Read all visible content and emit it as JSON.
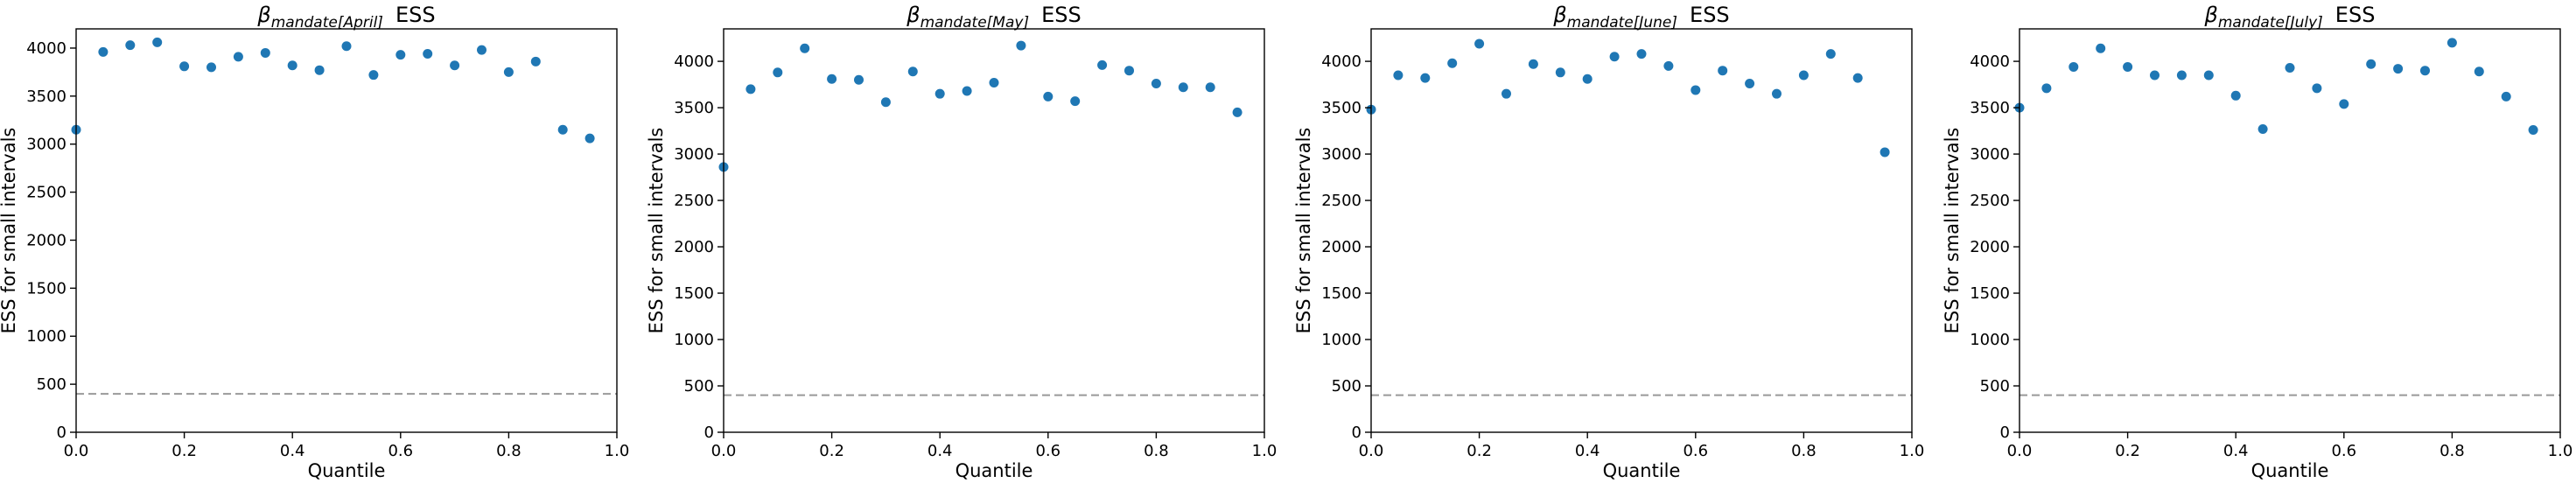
{
  "chart_data": [
    {
      "type": "scatter",
      "title_symbol": "β",
      "title_subscript": "mandate[April]",
      "title_suffix": "ESS",
      "xlabel": "Quantile",
      "ylabel": "ESS for small intervals",
      "xlim": [
        0.0,
        1.0
      ],
      "ylim": [
        0,
        4200
      ],
      "xticks": [
        "0.0",
        "0.2",
        "0.4",
        "0.6",
        "0.8",
        "1.0"
      ],
      "yticks": [
        "0",
        "500",
        "1000",
        "1500",
        "2000",
        "2500",
        "3000",
        "3500",
        "4000"
      ],
      "reference_line": 400,
      "color": "#1f77b4",
      "x": [
        0.0,
        0.05,
        0.1,
        0.15,
        0.2,
        0.25,
        0.3,
        0.35,
        0.4,
        0.45,
        0.5,
        0.55,
        0.6,
        0.65,
        0.7,
        0.75,
        0.8,
        0.85,
        0.9,
        0.95
      ],
      "y": [
        3150,
        3960,
        4030,
        4060,
        3810,
        3800,
        3910,
        3950,
        3820,
        3770,
        4020,
        3720,
        3930,
        3940,
        3820,
        3980,
        3750,
        3860,
        3150,
        3060
      ]
    },
    {
      "type": "scatter",
      "title_symbol": "β",
      "title_subscript": "mandate[May]",
      "title_suffix": "ESS",
      "xlabel": "Quantile",
      "ylabel": "ESS for small intervals",
      "xlim": [
        0.0,
        1.0
      ],
      "ylim": [
        0,
        4350
      ],
      "xticks": [
        "0.0",
        "0.2",
        "0.4",
        "0.6",
        "0.8",
        "1.0"
      ],
      "yticks": [
        "0",
        "500",
        "1000",
        "1500",
        "2000",
        "2500",
        "3000",
        "3500",
        "4000"
      ],
      "reference_line": 400,
      "color": "#1f77b4",
      "x": [
        0.0,
        0.05,
        0.1,
        0.15,
        0.2,
        0.25,
        0.3,
        0.35,
        0.4,
        0.45,
        0.5,
        0.55,
        0.6,
        0.65,
        0.7,
        0.75,
        0.8,
        0.85,
        0.9,
        0.95
      ],
      "y": [
        2860,
        3700,
        3880,
        4140,
        3810,
        3800,
        3560,
        3890,
        3650,
        3680,
        3770,
        4170,
        3620,
        3570,
        3960,
        3900,
        3760,
        3720,
        3720,
        3450
      ]
    },
    {
      "type": "scatter",
      "title_symbol": "β",
      "title_subscript": "mandate[June]",
      "title_suffix": "ESS",
      "xlabel": "Quantile",
      "ylabel": "ESS for small intervals",
      "xlim": [
        0.0,
        1.0
      ],
      "ylim": [
        0,
        4350
      ],
      "xticks": [
        "0.0",
        "0.2",
        "0.4",
        "0.6",
        "0.8",
        "1.0"
      ],
      "yticks": [
        "0",
        "500",
        "1000",
        "1500",
        "2000",
        "2500",
        "3000",
        "3500",
        "4000"
      ],
      "reference_line": 400,
      "color": "#1f77b4",
      "x": [
        0.0,
        0.05,
        0.1,
        0.15,
        0.2,
        0.25,
        0.3,
        0.35,
        0.4,
        0.45,
        0.5,
        0.55,
        0.6,
        0.65,
        0.7,
        0.75,
        0.8,
        0.85,
        0.9,
        0.95
      ],
      "y": [
        3480,
        3850,
        3820,
        3980,
        4190,
        3650,
        3970,
        3880,
        3810,
        4050,
        4080,
        3950,
        3690,
        3900,
        3760,
        3650,
        3850,
        4080,
        3820,
        3020
      ]
    },
    {
      "type": "scatter",
      "title_symbol": "β",
      "title_subscript": "mandate[July]",
      "title_suffix": "ESS",
      "xlabel": "Quantile",
      "ylabel": "ESS for small intervals",
      "xlim": [
        0.0,
        1.0
      ],
      "ylim": [
        0,
        4350
      ],
      "xticks": [
        "0.0",
        "0.2",
        "0.4",
        "0.6",
        "0.8",
        "1.0"
      ],
      "yticks": [
        "0",
        "500",
        "1000",
        "1500",
        "2000",
        "2500",
        "3000",
        "3500",
        "4000"
      ],
      "reference_line": 400,
      "color": "#1f77b4",
      "x": [
        0.0,
        0.05,
        0.1,
        0.15,
        0.2,
        0.25,
        0.3,
        0.35,
        0.4,
        0.45,
        0.5,
        0.55,
        0.6,
        0.65,
        0.7,
        0.75,
        0.8,
        0.85,
        0.9,
        0.95
      ],
      "y": [
        3500,
        3710,
        3940,
        4140,
        3940,
        3850,
        3850,
        3850,
        3630,
        3270,
        3930,
        3710,
        3540,
        3970,
        3920,
        3900,
        4200,
        3890,
        3620,
        3260
      ]
    }
  ]
}
